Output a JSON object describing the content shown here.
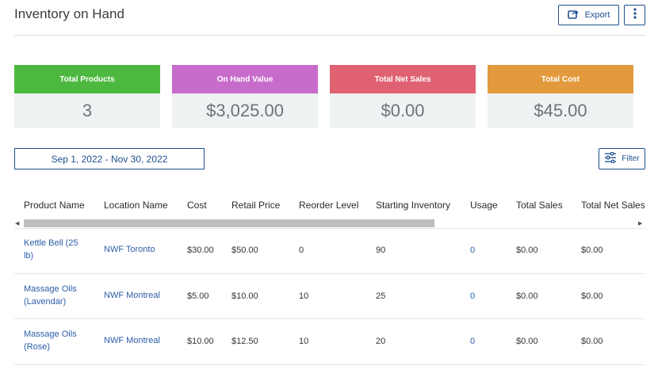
{
  "header": {
    "title": "Inventory on Hand",
    "export_label": "Export"
  },
  "cards": [
    {
      "label": "Total Products",
      "value": "3",
      "color": "#4db840"
    },
    {
      "label": "On Hand Value",
      "value": "$3,025.00",
      "color": "#c86ccb"
    },
    {
      "label": "Total Net Sales",
      "value": "$0.00",
      "color": "#e06272"
    },
    {
      "label": "Total Cost",
      "value": "$45.00",
      "color": "#e39a3d"
    }
  ],
  "filters": {
    "date_range": "Sep 1, 2022 - Nov 30, 2022",
    "filter_label": "Filter"
  },
  "table": {
    "columns": [
      "Product Name",
      "Location Name",
      "Cost",
      "Retail Price",
      "Reorder Level",
      "Starting Inventory",
      "Usage",
      "Total Sales",
      "Total Net Sales"
    ],
    "rows": [
      {
        "product_line1": "Kettle Bell (25",
        "product_line2": "lb)",
        "location": "NWF Toronto",
        "cost": "$30.00",
        "retail": "$50.00",
        "reorder": "0",
        "starting": "90",
        "usage": "0",
        "total_sales": "$0.00",
        "total_net_sales": "$0.00"
      },
      {
        "product_line1": "Massage Oils",
        "product_line2": "(Lavendar)",
        "location": "NWF Montreal",
        "cost": "$5.00",
        "retail": "$10.00",
        "reorder": "10",
        "starting": "25",
        "usage": "0",
        "total_sales": "$0.00",
        "total_net_sales": "$0.00"
      },
      {
        "product_line1": "Massage Oils",
        "product_line2": "(Rose)",
        "location": "NWF Montreal",
        "cost": "$10.00",
        "retail": "$12.50",
        "reorder": "10",
        "starting": "20",
        "usage": "0",
        "total_sales": "$0.00",
        "total_net_sales": "$0.00"
      }
    ]
  },
  "icons": {
    "export": "share-export-icon",
    "more": "vertical-dots-icon",
    "filter": "sliders-icon"
  },
  "colors": {
    "accent": "#1f4f8f",
    "link": "#2a5da8"
  }
}
